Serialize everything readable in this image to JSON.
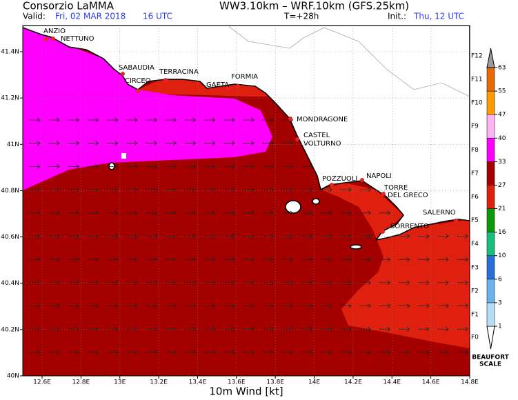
{
  "header": {
    "title": "Consorzio LaMMA",
    "model": "WW3.10km – WRF.10km (GFS.25km)",
    "valid_label": "Valid:",
    "valid_date": "Fri, 02 MAR 2018",
    "valid_time": "16 UTC",
    "step": "T=+28h",
    "init_label": "Init.:",
    "init_value": "Thu, 12 UTC"
  },
  "map": {
    "xlabel": "10m Wind [kt]",
    "lon_ticks": [
      {
        "value": 12.6,
        "label": "12.6E"
      },
      {
        "value": 12.8,
        "label": "12.8E"
      },
      {
        "value": 13.0,
        "label": "13E"
      },
      {
        "value": 13.2,
        "label": "13.2E"
      },
      {
        "value": 13.4,
        "label": "13.4E"
      },
      {
        "value": 13.6,
        "label": "13.6E"
      },
      {
        "value": 13.8,
        "label": "13.8E"
      },
      {
        "value": 14.0,
        "label": "14E"
      },
      {
        "value": 14.2,
        "label": "14.2E"
      },
      {
        "value": 14.4,
        "label": "14.4E"
      },
      {
        "value": 14.6,
        "label": "14.6E"
      },
      {
        "value": 14.8,
        "label": "14.8E"
      }
    ],
    "lat_ticks": [
      {
        "value": 40.0,
        "label": "40N"
      },
      {
        "value": 40.2,
        "label": "40.2N"
      },
      {
        "value": 40.4,
        "label": "40.4N"
      },
      {
        "value": 40.6,
        "label": "40.6N"
      },
      {
        "value": 40.8,
        "label": "40.8N"
      },
      {
        "value": 41.0,
        "label": "41N"
      },
      {
        "value": 41.2,
        "label": "41.2N"
      },
      {
        "value": 41.4,
        "label": "41.4N"
      }
    ],
    "places": [
      [
        "ANZIO"
      ],
      [
        "NETTUNO"
      ],
      [
        "SABAUDIA"
      ],
      [
        "CIRCEO"
      ],
      [
        "TERRACINA"
      ],
      [
        "GAETA"
      ],
      [
        "FORMIA"
      ],
      [
        "MONDRAGONE"
      ],
      [
        "CASTEL",
        "VOLTURNO"
      ],
      [
        "POZZUOLI"
      ],
      [
        "NAPOLI"
      ],
      [
        "TORRE",
        "DEL  GRECO"
      ],
      [
        "SORRENTO"
      ],
      [
        "SALERNO"
      ]
    ]
  },
  "legend": {
    "beaufort": [
      "F0",
      "F1",
      "F2",
      "F3",
      "F4",
      "F5",
      "F6",
      "F7",
      "F8",
      "F9",
      "F10",
      "F11",
      "F12"
    ],
    "knots": [
      1,
      3,
      6,
      10,
      16,
      21,
      27,
      33,
      40,
      47,
      55,
      63
    ],
    "colors": [
      "#ffffff",
      "#b4dcf6",
      "#6cb2ec",
      "#2a6fd8",
      "#14c07c",
      "#0a9a0a",
      "#e0200e",
      "#a40000",
      "#ff00ff",
      "#ffb4f6",
      "#ff9a00",
      "#e86a00",
      "#9a9a9a"
    ],
    "scale_name": [
      "BEAUFORT",
      "SCALE"
    ]
  }
}
